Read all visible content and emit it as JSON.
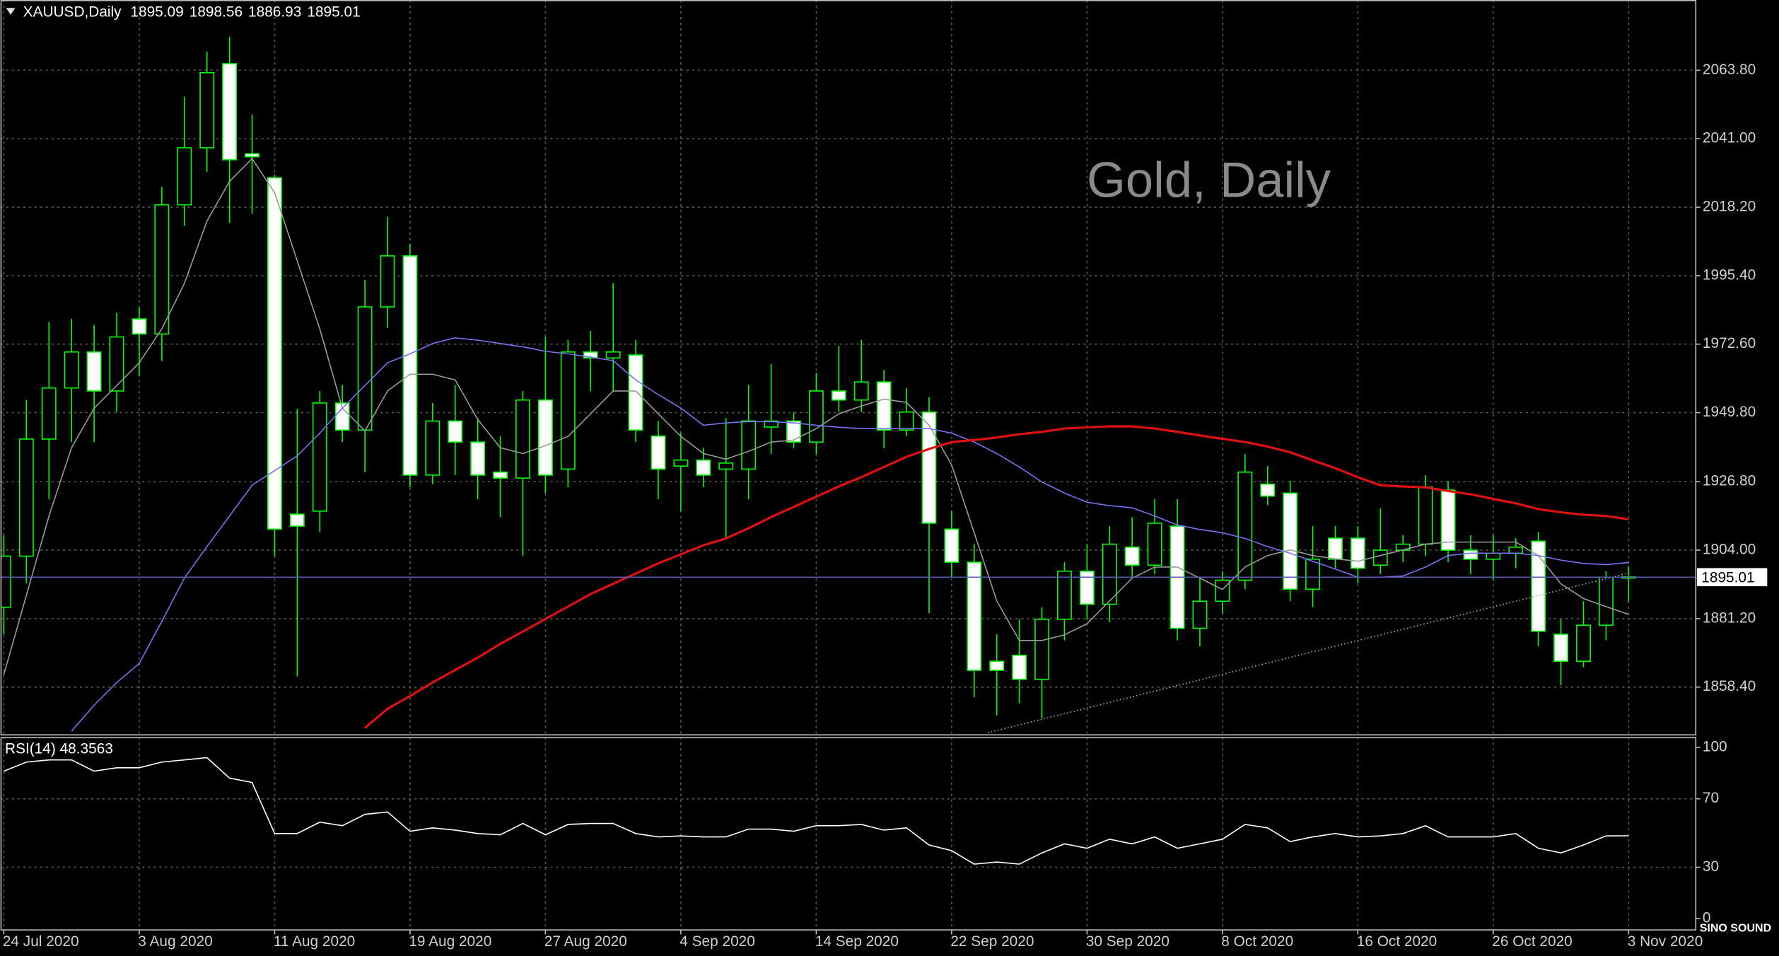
{
  "logo": "SINO SOUND",
  "chart_data": [
    {
      "type": "candlestick",
      "title": "XAUUSD,Daily",
      "watermark": "Gold, Daily",
      "categories": [
        "24 Jul 2020",
        null,
        null,
        null,
        null,
        null,
        "3 Aug 2020",
        null,
        null,
        null,
        null,
        null,
        "11 Aug 2020",
        null,
        null,
        null,
        null,
        null,
        "19 Aug 2020",
        null,
        null,
        null,
        null,
        null,
        "27 Aug 2020",
        null,
        null,
        null,
        null,
        null,
        "4 Sep 2020",
        null,
        null,
        null,
        null,
        null,
        "14 Sep 2020",
        null,
        null,
        null,
        null,
        null,
        "22 Sep 2020",
        null,
        null,
        null,
        null,
        null,
        "30 Sep 2020",
        null,
        null,
        null,
        null,
        null,
        "8 Oct 2020",
        null,
        null,
        null,
        null,
        null,
        "16 Oct 2020",
        null,
        null,
        null,
        null,
        null,
        "26 Oct 2020",
        null,
        null,
        null,
        null,
        null,
        "3 Nov 2020"
      ],
      "open": [
        1885,
        1902,
        1941,
        1958,
        1970,
        1957,
        1981,
        1976,
        2019,
        2038,
        2066,
        2036,
        2028,
        1916,
        1917,
        1953,
        1944,
        1985,
        2002,
        1929,
        1947,
        1940,
        1930,
        1928,
        1954,
        1931,
        1970,
        1968,
        1969,
        1942,
        1932,
        1934,
        1931,
        1931,
        1945,
        1947,
        1940,
        1957,
        1954,
        1960,
        1944,
        1950,
        1911,
        1900,
        1867,
        1869,
        1861,
        1881,
        1897,
        1886,
        1905,
        1899,
        1912,
        1878,
        1887,
        1894,
        1926,
        1923,
        1891,
        1908,
        1908,
        1899,
        1904,
        1906,
        1924,
        1904,
        1901,
        1903,
        1907,
        1876,
        1867,
        1879,
        1895.09
      ],
      "high": [
        1909,
        1954,
        1980,
        1981,
        1979,
        1983,
        1985,
        2025,
        2055,
        2070,
        2075,
        2049,
        2029,
        1951,
        1957,
        1959,
        1994,
        2015,
        2006,
        1953,
        1959,
        1948,
        1942,
        1957,
        1975,
        1974,
        1977,
        1993,
        1974,
        1947,
        1943,
        1938,
        1948,
        1959,
        1966,
        1950,
        1963,
        1972,
        1974,
        1964,
        1958,
        1955,
        1917,
        1906,
        1876,
        1881,
        1885,
        1900,
        1906,
        1912,
        1915,
        1921,
        1921,
        1895,
        1897,
        1936,
        1932,
        1927,
        1912,
        1912,
        1912,
        1918,
        1909,
        1929,
        1927,
        1909,
        1909,
        1908,
        1910,
        1881,
        1887,
        1897,
        1898.56
      ],
      "low": [
        1876,
        1893,
        1921,
        1940,
        1940,
        1950,
        1962,
        1967,
        2012,
        2030,
        2013,
        2016,
        1902,
        1862,
        1910,
        1940,
        1930,
        1978,
        1925,
        1926,
        1929,
        1921,
        1915,
        1902,
        1923,
        1925,
        1957,
        1957,
        1940,
        1921,
        1917,
        1925,
        1908,
        1921,
        1936,
        1938,
        1936,
        1950,
        1950,
        1938,
        1942,
        1883,
        1895,
        1855,
        1849,
        1853,
        1848,
        1874,
        1881,
        1880,
        1895,
        1896,
        1874,
        1872,
        1883,
        1891,
        1919,
        1887,
        1885,
        1898,
        1893,
        1896,
        1900,
        1902,
        1900,
        1896,
        1894,
        1898,
        1872,
        1859,
        1865,
        1874,
        1886.93
      ],
      "close": [
        1902,
        1941,
        1958,
        1970,
        1957,
        1975,
        1976,
        2019,
        2038,
        2063,
        2034,
        2035,
        1911,
        1912,
        1953,
        1944,
        1985,
        2002,
        1929,
        1947,
        1940,
        1929,
        1928,
        1954,
        1929,
        1970,
        1968,
        1970,
        1944,
        1931,
        1934,
        1929,
        1933,
        1947,
        1947,
        1940,
        1957,
        1954,
        1960,
        1944,
        1950,
        1913,
        1900,
        1864,
        1864,
        1861,
        1881,
        1897,
        1886,
        1906,
        1899,
        1913,
        1878,
        1887,
        1894,
        1930,
        1922,
        1891,
        1901,
        1901,
        1898,
        1904,
        1906,
        1925,
        1904,
        1901,
        1903,
        1905,
        1877,
        1867,
        1879,
        1895,
        1895.01
      ],
      "up_color": "#00ff00",
      "down_fill": "#ffffff",
      "up_fill": "#000000",
      "lines": [
        {
          "color": "#9a9a9a",
          "values": [
            1862.6,
            1889.0,
            1915.4,
            1938.1,
            1951.3,
            1958.8,
            1966.4,
            1977.7,
            1992.8,
            2013.6,
            2026.8,
            2034.4,
            2023.0,
            2000.4,
            1977.7,
            1951.3,
            1943.7,
            1957.0,
            1962.6,
            1962.6,
            1960.7,
            1947.5,
            1938.1,
            1936.2,
            1938.8,
            1941.9,
            1949.4,
            1957.0,
            1957.0,
            1949.4,
            1941.9,
            1936.2,
            1934.3,
            1936.9,
            1940.0,
            1940.7,
            1944.5,
            1949.4,
            1952.0,
            1954.3,
            1953.2,
            1945.6,
            1932.4,
            1909.8,
            1887.1,
            1873.9,
            1873.9,
            1875.8,
            1879.5,
            1887.1,
            1894.7,
            1898.4,
            1898.4,
            1894.7,
            1890.9,
            1898.4,
            1902.2,
            1904.1,
            1902.2,
            1901.1,
            1900.3,
            1902.2,
            1904.1,
            1906.0,
            1906.7,
            1906.7,
            1906.7,
            1906.7,
            1902.2,
            1892.8,
            1887.9,
            1885.2,
            1882.6
          ]
        },
        {
          "color": "#7b70f0",
          "values": [
            null,
            null,
            null,
            1843.7,
            1852.4,
            1859.9,
            1866.3,
            1880.3,
            1894.7,
            1905.2,
            1915.4,
            1925.6,
            1930.5,
            1935.4,
            1943.0,
            1951.3,
            1958.8,
            1966.4,
            1969.4,
            1972.8,
            1974.7,
            1973.9,
            1972.8,
            1971.7,
            1970.2,
            1969.4,
            1968.3,
            1967.1,
            1960.7,
            1955.8,
            1951.3,
            1945.6,
            1946.4,
            1946.8,
            1946.8,
            1946.4,
            1945.6,
            1944.9,
            1944.5,
            1944.5,
            1944.5,
            1944.5,
            1943.0,
            1940.0,
            1936.2,
            1931.7,
            1926.7,
            1923.0,
            1920.0,
            1918.8,
            1918.1,
            1915.4,
            1912.4,
            1910.9,
            1909.8,
            1907.9,
            1905.2,
            1903.0,
            1900.3,
            1897.7,
            1895.0,
            1895.0,
            1895.4,
            1898.4,
            1902.2,
            1903.0,
            1903.0,
            1903.0,
            1902.2,
            1900.7,
            1899.6,
            1899.2,
            1899.9
          ]
        },
        {
          "color": "#e01010",
          "values": [
            null,
            null,
            null,
            null,
            null,
            null,
            null,
            null,
            null,
            null,
            null,
            null,
            null,
            null,
            null,
            null,
            1844.8,
            1851.2,
            1855.4,
            1859.9,
            1864.1,
            1868.2,
            1872.8,
            1876.9,
            1881.1,
            1885.2,
            1889.4,
            1892.8,
            1896.2,
            1899.6,
            1902.6,
            1905.6,
            1907.9,
            1911.3,
            1915.0,
            1918.4,
            1921.8,
            1925.2,
            1928.3,
            1931.7,
            1935.1,
            1937.7,
            1940.0,
            1940.7,
            1941.5,
            1942.6,
            1943.4,
            1944.5,
            1944.9,
            1945.2,
            1945.2,
            1944.5,
            1943.4,
            1942.2,
            1941.1,
            1940.0,
            1938.5,
            1936.6,
            1933.9,
            1931.3,
            1928.3,
            1925.6,
            1925.2,
            1924.9,
            1923.7,
            1922.6,
            1921.1,
            1919.6,
            1917.7,
            1916.6,
            1915.8,
            1915.4,
            1914.3
          ]
        }
      ],
      "trendline": [
        {
          "x": 43.6,
          "y": 1843.2
        },
        {
          "x": 72.06,
          "y": 1896.5
        }
      ],
      "ylim": [
        1842.5,
        2087.2
      ],
      "yticks": [
        {
          "value": 1858.4,
          "label": "1858.40"
        },
        {
          "value": 1881.2,
          "label": "1881.20"
        },
        {
          "value": 1904.0,
          "label": "1904.00"
        },
        {
          "value": 1926.8,
          "label": "1926.80"
        },
        {
          "value": 1949.8,
          "label": "1949.80"
        },
        {
          "value": 1972.6,
          "label": "1972.60"
        },
        {
          "value": 1995.4,
          "label": "1995.40"
        },
        {
          "value": 2018.2,
          "label": "2018.20"
        },
        {
          "value": 2041.0,
          "label": "2041.00"
        },
        {
          "value": 2063.8,
          "label": "2063.80"
        }
      ],
      "grid": true
    },
    {
      "type": "line",
      "title": "RSI(14) 48.3563",
      "color": "#ffffff",
      "values": [
        86.1,
        91.4,
        92.7,
        92.7,
        86.1,
        88.1,
        88.1,
        91.4,
        92.7,
        94.0,
        82.1,
        79.5,
        49.7,
        49.7,
        56.3,
        54.3,
        60.9,
        62.3,
        51.0,
        53.0,
        51.7,
        49.7,
        49.0,
        55.6,
        49.0,
        55.0,
        55.6,
        55.6,
        49.7,
        47.7,
        48.3,
        47.7,
        47.7,
        52.3,
        52.3,
        51.0,
        54.3,
        54.3,
        55.0,
        51.7,
        53.0,
        43.0,
        39.7,
        31.8,
        33.1,
        31.8,
        38.4,
        43.7,
        41.1,
        46.4,
        43.7,
        47.7,
        41.1,
        43.7,
        46.4,
        55.0,
        53.0,
        45.0,
        47.7,
        49.7,
        47.7,
        48.3,
        49.7,
        54.3,
        47.7,
        47.7,
        47.7,
        49.7,
        41.1,
        38.4,
        43.0,
        48.3,
        48.3563
      ],
      "ylim": [
        -6.6,
        106
      ],
      "yticks": [
        0,
        30,
        70,
        100
      ],
      "levels": [
        30,
        70
      ],
      "grid": true
    }
  ]
}
